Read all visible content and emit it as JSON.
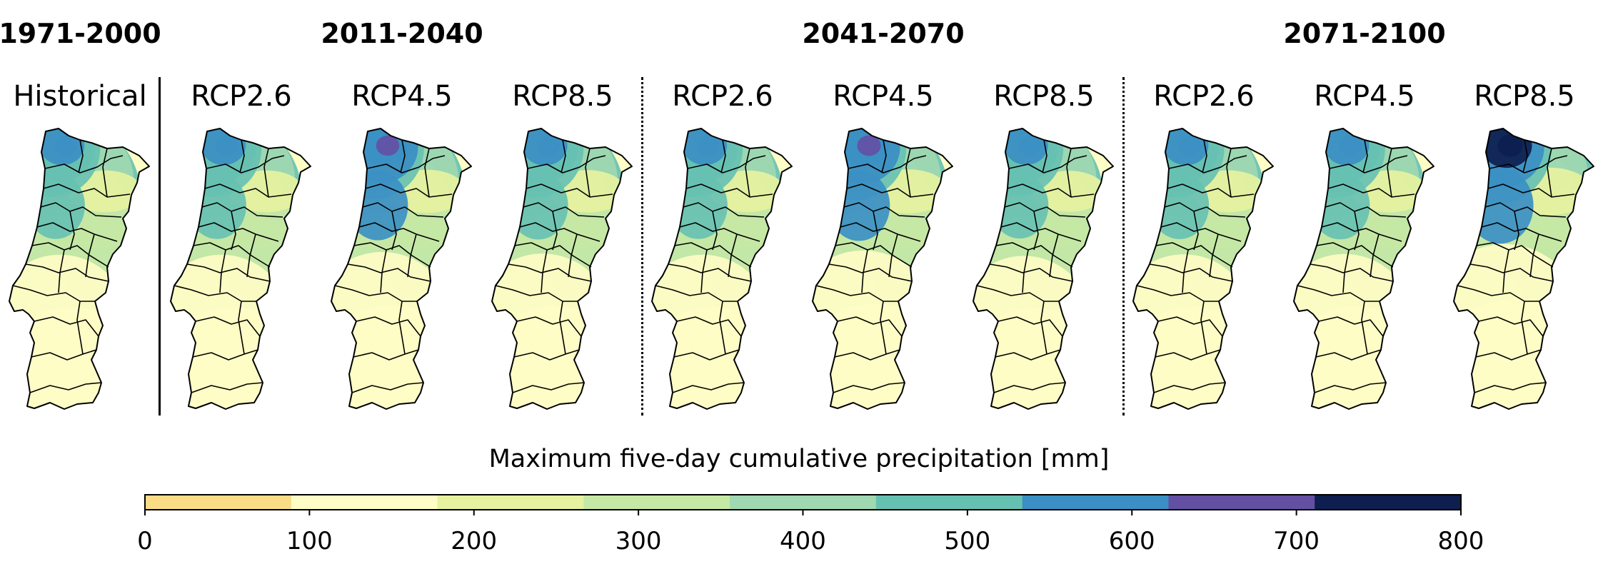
{
  "periods": [
    "1971-2000",
    "2011-2040",
    "2041-2070",
    "2071-2100"
  ],
  "panels": [
    {
      "label": "Historical",
      "intensity": 0.55
    },
    {
      "label": "RCP2.6",
      "intensity": 0.55
    },
    {
      "label": "RCP4.5",
      "intensity": 0.62
    },
    {
      "label": "RCP8.5",
      "intensity": 0.58
    },
    {
      "label": "RCP2.6",
      "intensity": 0.55
    },
    {
      "label": "RCP4.5",
      "intensity": 0.66
    },
    {
      "label": "RCP8.5",
      "intensity": 0.52
    },
    {
      "label": "RCP2.6",
      "intensity": 0.56
    },
    {
      "label": "RCP4.5",
      "intensity": 0.57
    },
    {
      "label": "RCP8.5",
      "intensity": 0.82
    }
  ],
  "colorbar": {
    "title": "Maximum five-day cumulative precipitation [mm]",
    "ticks": [
      "0",
      "100",
      "200",
      "300",
      "400",
      "500",
      "600",
      "700",
      "800"
    ],
    "colors": [
      "#fadb86",
      "#fefdc6",
      "#e6f29f",
      "#c5e8a5",
      "#9fd8b1",
      "#67c1b2",
      "#3b8fc4",
      "#6450a3",
      "#0d1e4f"
    ]
  }
}
